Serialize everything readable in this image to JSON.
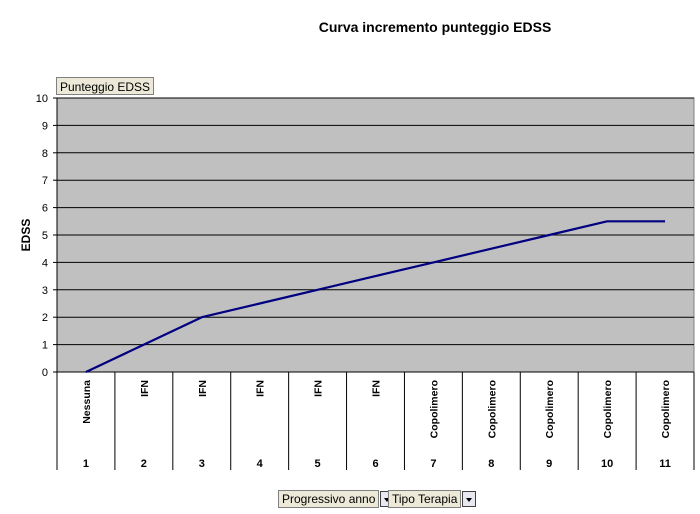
{
  "chart_data": {
    "type": "line",
    "title": "Curva incremento punteggio EDSS",
    "ylabel": "EDSS",
    "xlabel": "",
    "ylim": [
      0,
      10
    ],
    "yticks": [
      0,
      1,
      2,
      3,
      4,
      5,
      6,
      7,
      8,
      9,
      10
    ],
    "categories": [
      "1",
      "2",
      "3",
      "4",
      "5",
      "6",
      "7",
      "8",
      "9",
      "10",
      "11"
    ],
    "therapy_labels": [
      "Nessuna",
      "IFN",
      "IFN",
      "IFN",
      "IFN",
      "IFN",
      "Copolimero",
      "Copolimero",
      "Copolimero",
      "Copolimero",
      "Copolimero"
    ],
    "series": [
      {
        "values": [
          0,
          1,
          2,
          2.5,
          3,
          3.5,
          4,
          4.5,
          5,
          5.5,
          5.5
        ]
      }
    ],
    "colors": {
      "plot_bg": "#c0c0c0",
      "line": "#000080",
      "grid": "#000000"
    },
    "grid": true
  },
  "controls": {
    "series_field_button": "Punteggio EDSS",
    "field_progressivo": "Progressivo anno",
    "field_tipo": "Tipo Terapia"
  }
}
